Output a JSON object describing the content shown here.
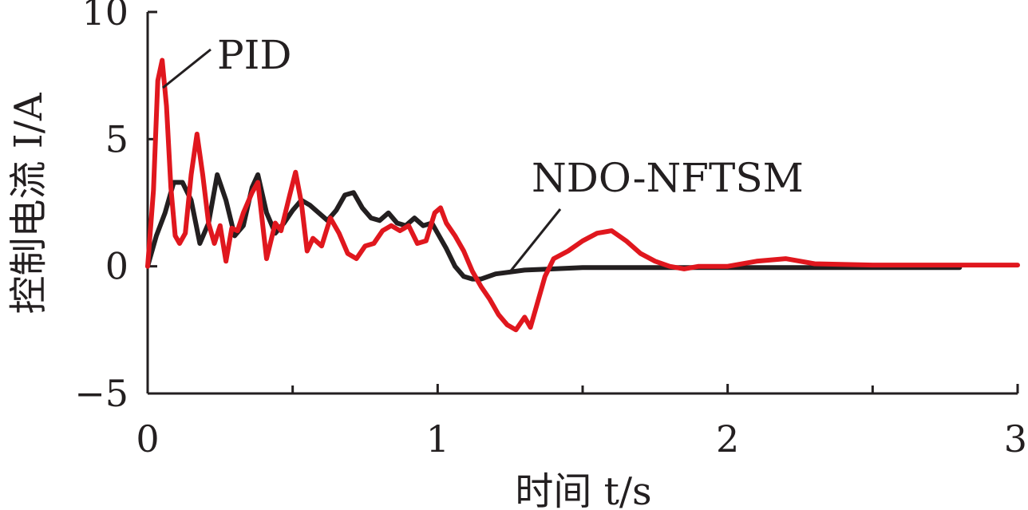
{
  "chart_data": {
    "type": "line",
    "xlabel": "时间 t/s",
    "ylabel": "控制电流 I/A",
    "xlim": [
      0,
      3
    ],
    "ylim": [
      -5,
      10
    ],
    "x_ticks": [
      0,
      1,
      2,
      3
    ],
    "x_minor_ticks": [
      0.5,
      1.5,
      2.5
    ],
    "y_ticks": [
      -5,
      0,
      5,
      10
    ],
    "y_tick_labels": [
      "−5",
      "0",
      "5",
      "10"
    ],
    "x_tick_labels": [
      "0",
      "1",
      "2",
      "3"
    ],
    "grid": false,
    "legend": "none",
    "annotations": [
      {
        "text": "PID",
        "series": "PID"
      },
      {
        "text": "NDO-NFTSM",
        "series": "NDO-NFTSM"
      }
    ],
    "series": [
      {
        "name": "NDO-NFTSM",
        "color": "#231f20",
        "x": [
          0,
          0.03,
          0.06,
          0.09,
          0.12,
          0.15,
          0.18,
          0.21,
          0.24,
          0.27,
          0.3,
          0.33,
          0.36,
          0.38,
          0.41,
          0.44,
          0.47,
          0.5,
          0.53,
          0.56,
          0.59,
          0.62,
          0.65,
          0.68,
          0.71,
          0.74,
          0.77,
          0.8,
          0.83,
          0.86,
          0.89,
          0.92,
          0.95,
          0.98,
          1.0,
          1.03,
          1.06,
          1.09,
          1.12,
          1.15,
          1.2,
          1.3,
          1.4,
          1.5,
          1.7,
          2.0,
          2.4,
          2.8
        ],
        "y": [
          0,
          1.2,
          2.1,
          3.3,
          3.3,
          2.6,
          0.9,
          1.7,
          3.6,
          2.6,
          1.2,
          1.6,
          3.1,
          3.6,
          2.1,
          1.3,
          1.7,
          2.2,
          2.6,
          2.4,
          2.1,
          1.8,
          2.2,
          2.8,
          2.9,
          2.3,
          1.9,
          1.8,
          2.1,
          1.7,
          1.6,
          1.9,
          1.6,
          1.7,
          1.3,
          0.7,
          0.0,
          -0.4,
          -0.5,
          -0.5,
          -0.3,
          -0.15,
          -0.1,
          -0.05,
          -0.05,
          -0.05,
          -0.05,
          -0.05
        ]
      },
      {
        "name": "PID",
        "color": "#e0171e",
        "x": [
          0,
          0.02,
          0.035,
          0.05,
          0.065,
          0.08,
          0.095,
          0.11,
          0.13,
          0.15,
          0.17,
          0.19,
          0.21,
          0.23,
          0.25,
          0.27,
          0.29,
          0.31,
          0.33,
          0.36,
          0.38,
          0.41,
          0.44,
          0.46,
          0.49,
          0.51,
          0.53,
          0.55,
          0.57,
          0.6,
          0.63,
          0.66,
          0.69,
          0.72,
          0.75,
          0.78,
          0.81,
          0.84,
          0.87,
          0.9,
          0.93,
          0.96,
          0.99,
          1.01,
          1.03,
          1.06,
          1.09,
          1.12,
          1.15,
          1.18,
          1.21,
          1.24,
          1.27,
          1.3,
          1.32,
          1.34,
          1.37,
          1.4,
          1.45,
          1.5,
          1.55,
          1.6,
          1.65,
          1.7,
          1.75,
          1.8,
          1.85,
          1.9,
          1.95,
          2.0,
          2.1,
          2.2,
          2.3,
          2.5,
          2.8,
          3.0
        ],
        "y": [
          0,
          3.0,
          7.3,
          8.1,
          6.3,
          3.1,
          1.2,
          0.9,
          1.3,
          3.6,
          5.2,
          3.6,
          1.7,
          0.9,
          1.6,
          0.2,
          1.5,
          1.4,
          2.1,
          2.9,
          3.3,
          0.3,
          1.7,
          1.4,
          2.8,
          3.7,
          2.5,
          0.6,
          1.1,
          0.8,
          1.9,
          1.3,
          0.5,
          0.3,
          0.8,
          0.9,
          1.4,
          1.6,
          1.4,
          1.6,
          0.9,
          1.0,
          2.1,
          2.3,
          1.7,
          1.2,
          0.6,
          -0.2,
          -0.8,
          -1.3,
          -1.9,
          -2.3,
          -2.5,
          -2.0,
          -2.4,
          -1.6,
          -0.4,
          0.3,
          0.6,
          1.0,
          1.3,
          1.4,
          1.0,
          0.5,
          0.2,
          0.0,
          -0.1,
          0.0,
          0.0,
          0.0,
          0.2,
          0.3,
          0.1,
          0.05,
          0.05,
          0.05
        ]
      }
    ]
  }
}
